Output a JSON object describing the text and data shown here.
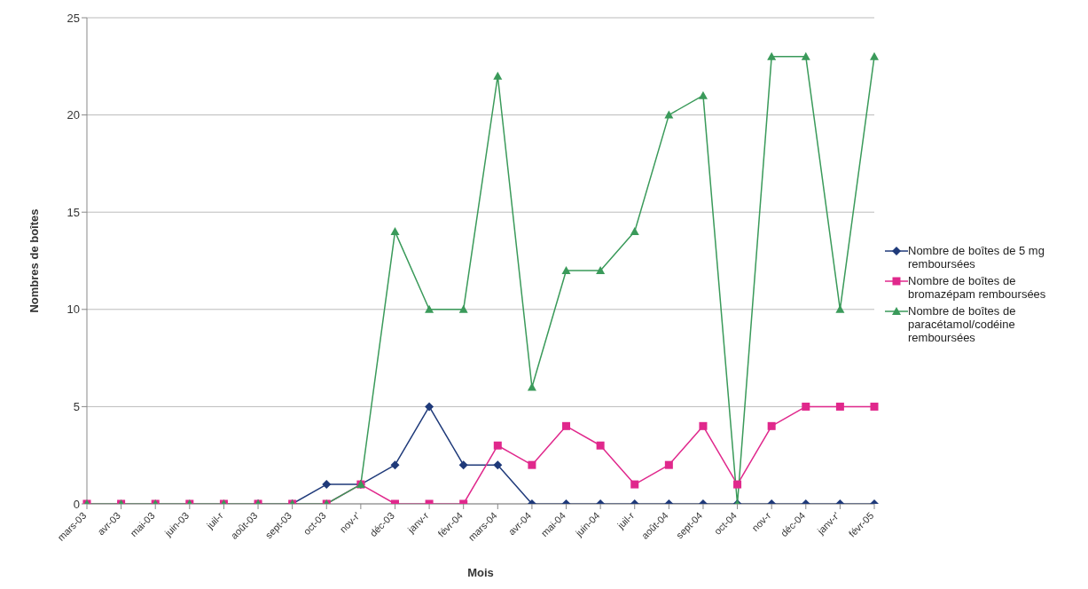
{
  "chart_data": {
    "type": "line",
    "xlabel": "Mois",
    "ylabel": "Nombres de boîtes",
    "categories": [
      "mars-03",
      "avr-03",
      "mai-03",
      "juin-03",
      "juil-r",
      "août-03",
      "sept-03",
      "oct-03",
      "nov-r'",
      "déc-03",
      "janv-r",
      "févr-04",
      "mars-04",
      "avr-04",
      "mai-04",
      "juin-04",
      "juil-r",
      "août-04",
      "sept-04",
      "oct-04",
      "nov-r",
      "déc-04",
      "janv-r'",
      "févr-05"
    ],
    "series": [
      {
        "name": "Nombre de boîtes de 5 mg remboursées",
        "color": "#1f3a7a",
        "marker": "diamond",
        "values": [
          null,
          null,
          null,
          null,
          null,
          0,
          0,
          1,
          1,
          2,
          5,
          2,
          2,
          0,
          0,
          0,
          0,
          0,
          0,
          0,
          0,
          0,
          0,
          0
        ]
      },
      {
        "name": "Nombre de boîtes de bromazépam remboursées",
        "color": "#e0288c",
        "marker": "square",
        "values": [
          0,
          0,
          0,
          0,
          0,
          0,
          0,
          0,
          1,
          0,
          0,
          0,
          3,
          2,
          4,
          3,
          1,
          2,
          4,
          1,
          4,
          5,
          5,
          5
        ]
      },
      {
        "name": "Nombre de boîtes de paracétamol/codéine remboursées",
        "color": "#3a9a5a",
        "marker": "triangle",
        "values": [
          0,
          0,
          0,
          0,
          0,
          0,
          0,
          0,
          1,
          14,
          10,
          10,
          22,
          6,
          12,
          12,
          14,
          20,
          21,
          0,
          23,
          23,
          10,
          23
        ]
      }
    ],
    "ylim": [
      0,
      25
    ],
    "yticks": [
      0,
      5,
      10,
      15,
      20,
      25
    ],
    "grid": "y",
    "legend": "right",
    "line_style": "solid"
  }
}
